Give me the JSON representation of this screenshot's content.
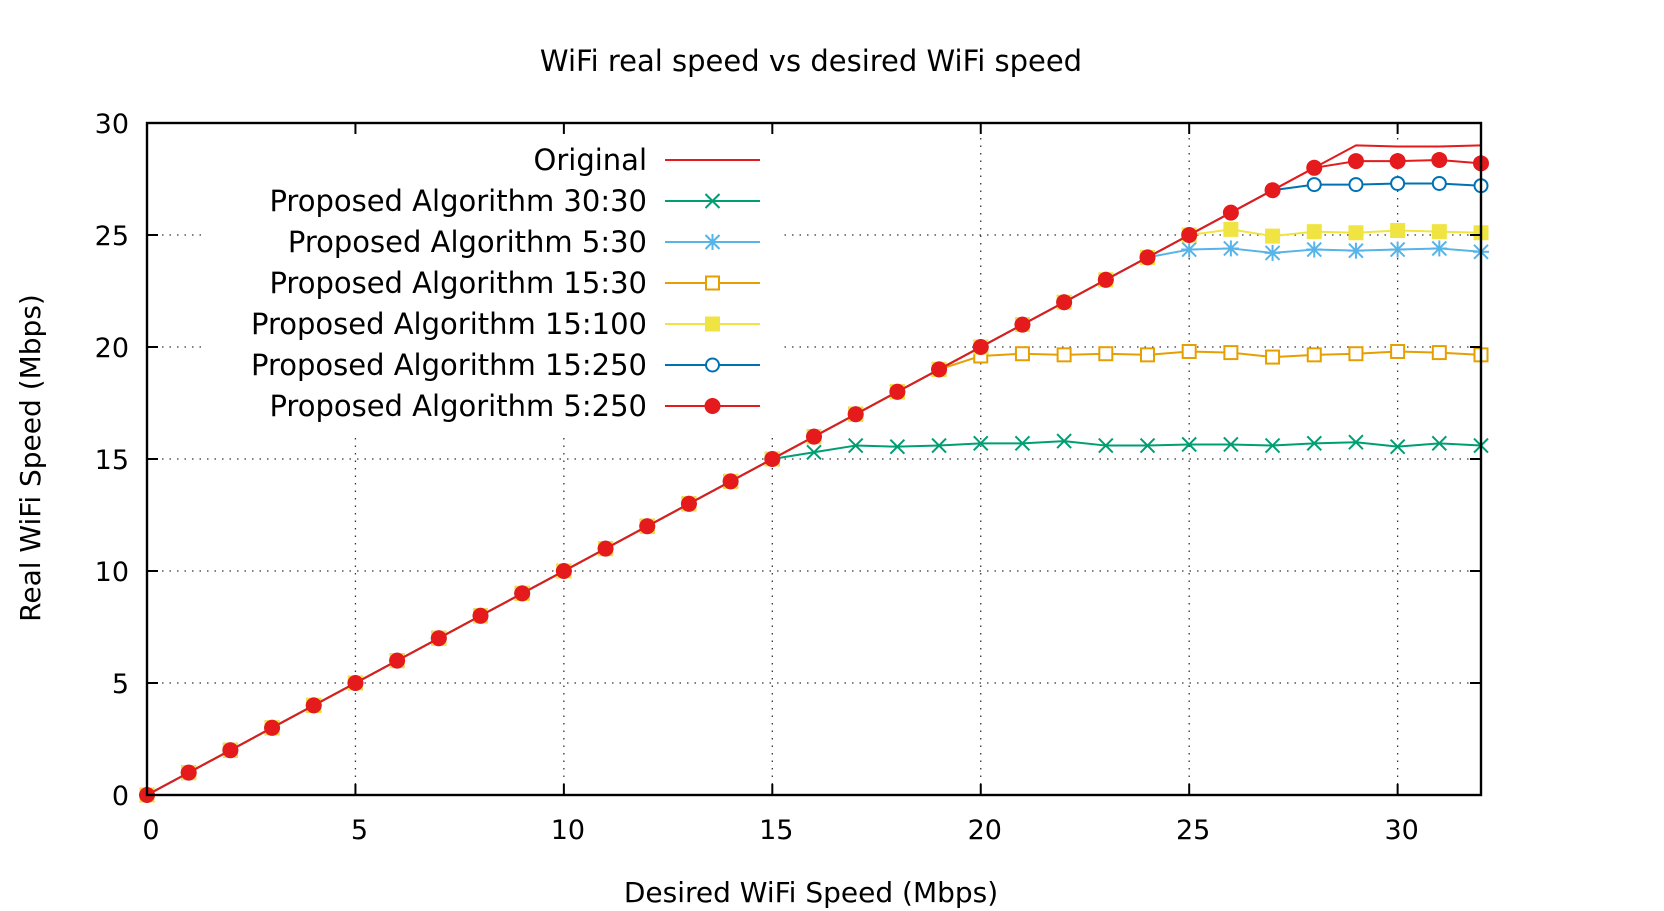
{
  "chart_data": {
    "type": "line",
    "title": "WiFi real speed vs desired WiFi speed",
    "xlabel": "Desired WiFi Speed (Mbps)",
    "ylabel": "Real WiFi Speed (Mbps)",
    "xlim": [
      0,
      32
    ],
    "ylim": [
      0,
      30
    ],
    "xticks": [
      0,
      5,
      10,
      15,
      20,
      25,
      30
    ],
    "yticks": [
      0,
      5,
      10,
      15,
      20,
      25,
      30
    ],
    "grid": true,
    "legend_position": "top-left",
    "x": [
      0,
      1,
      2,
      3,
      4,
      5,
      6,
      7,
      8,
      9,
      10,
      11,
      12,
      13,
      14,
      15,
      16,
      17,
      18,
      19,
      20,
      21,
      22,
      23,
      24,
      25,
      26,
      27,
      28,
      29,
      30,
      31,
      32
    ],
    "series": [
      {
        "name": "Original",
        "color": "#e41a1c",
        "marker": "none",
        "values": [
          0,
          1,
          2,
          3,
          4,
          5,
          6,
          7,
          8,
          9,
          10,
          11,
          12,
          13,
          14,
          15,
          16,
          17,
          18,
          19,
          20,
          21,
          22,
          23,
          24,
          25,
          26,
          27,
          28,
          29,
          28.95,
          28.95,
          29
        ]
      },
      {
        "name": "Proposed Algorithm 30:30",
        "color": "#009e73",
        "marker": "x",
        "values": [
          0,
          1,
          2,
          3,
          4,
          5,
          6,
          7,
          8,
          9,
          10,
          11,
          12,
          13,
          14,
          15,
          15.3,
          15.6,
          15.55,
          15.6,
          15.7,
          15.7,
          15.8,
          15.6,
          15.6,
          15.65,
          15.65,
          15.6,
          15.7,
          15.75,
          15.55,
          15.7,
          15.6
        ]
      },
      {
        "name": "Proposed Algorithm 5:30",
        "color": "#56b4e9",
        "marker": "asterisk",
        "values": [
          0,
          1,
          2,
          3,
          4,
          5,
          6,
          7,
          8,
          9,
          10,
          11,
          12,
          13,
          14,
          15,
          16,
          17,
          18,
          19,
          20,
          21,
          22,
          23,
          24,
          24.35,
          24.4,
          24.2,
          24.35,
          24.3,
          24.35,
          24.4,
          24.25
        ]
      },
      {
        "name": "Proposed Algorithm 15:30",
        "color": "#e69f00",
        "marker": "open-square",
        "values": [
          0,
          1,
          2,
          3,
          4,
          5,
          6,
          7,
          8,
          9,
          10,
          11,
          12,
          13,
          14,
          15,
          16,
          17,
          18,
          19,
          19.6,
          19.7,
          19.65,
          19.7,
          19.65,
          19.8,
          19.75,
          19.55,
          19.65,
          19.7,
          19.8,
          19.75,
          19.65
        ]
      },
      {
        "name": "Proposed Algorithm 15:100",
        "color": "#f0e442",
        "marker": "filled-square",
        "values": [
          0,
          1,
          2,
          3,
          4,
          5,
          6,
          7,
          8,
          9,
          10,
          11,
          12,
          13,
          14,
          15,
          16,
          17,
          18,
          19,
          20,
          21,
          22,
          23,
          24,
          25,
          25.25,
          24.95,
          25.15,
          25.1,
          25.2,
          25.15,
          25.1
        ]
      },
      {
        "name": "Proposed Algorithm 15:250",
        "color": "#0072b2",
        "marker": "open-circle",
        "values": [
          0,
          1,
          2,
          3,
          4,
          5,
          6,
          7,
          8,
          9,
          10,
          11,
          12,
          13,
          14,
          15,
          16,
          17,
          18,
          19,
          20,
          21,
          22,
          23,
          24,
          25,
          26,
          27,
          27.25,
          27.25,
          27.3,
          27.3,
          27.2
        ]
      },
      {
        "name": "Proposed Algorithm 5:250",
        "color": "#e41a1c",
        "marker": "filled-circle",
        "values": [
          0,
          1,
          2,
          3,
          4,
          5,
          6,
          7,
          8,
          9,
          10,
          11,
          12,
          13,
          14,
          15,
          16,
          17,
          18,
          19,
          20,
          21,
          22,
          23,
          24,
          25,
          26,
          27,
          28,
          28.3,
          28.3,
          28.35,
          28.2
        ]
      }
    ]
  }
}
